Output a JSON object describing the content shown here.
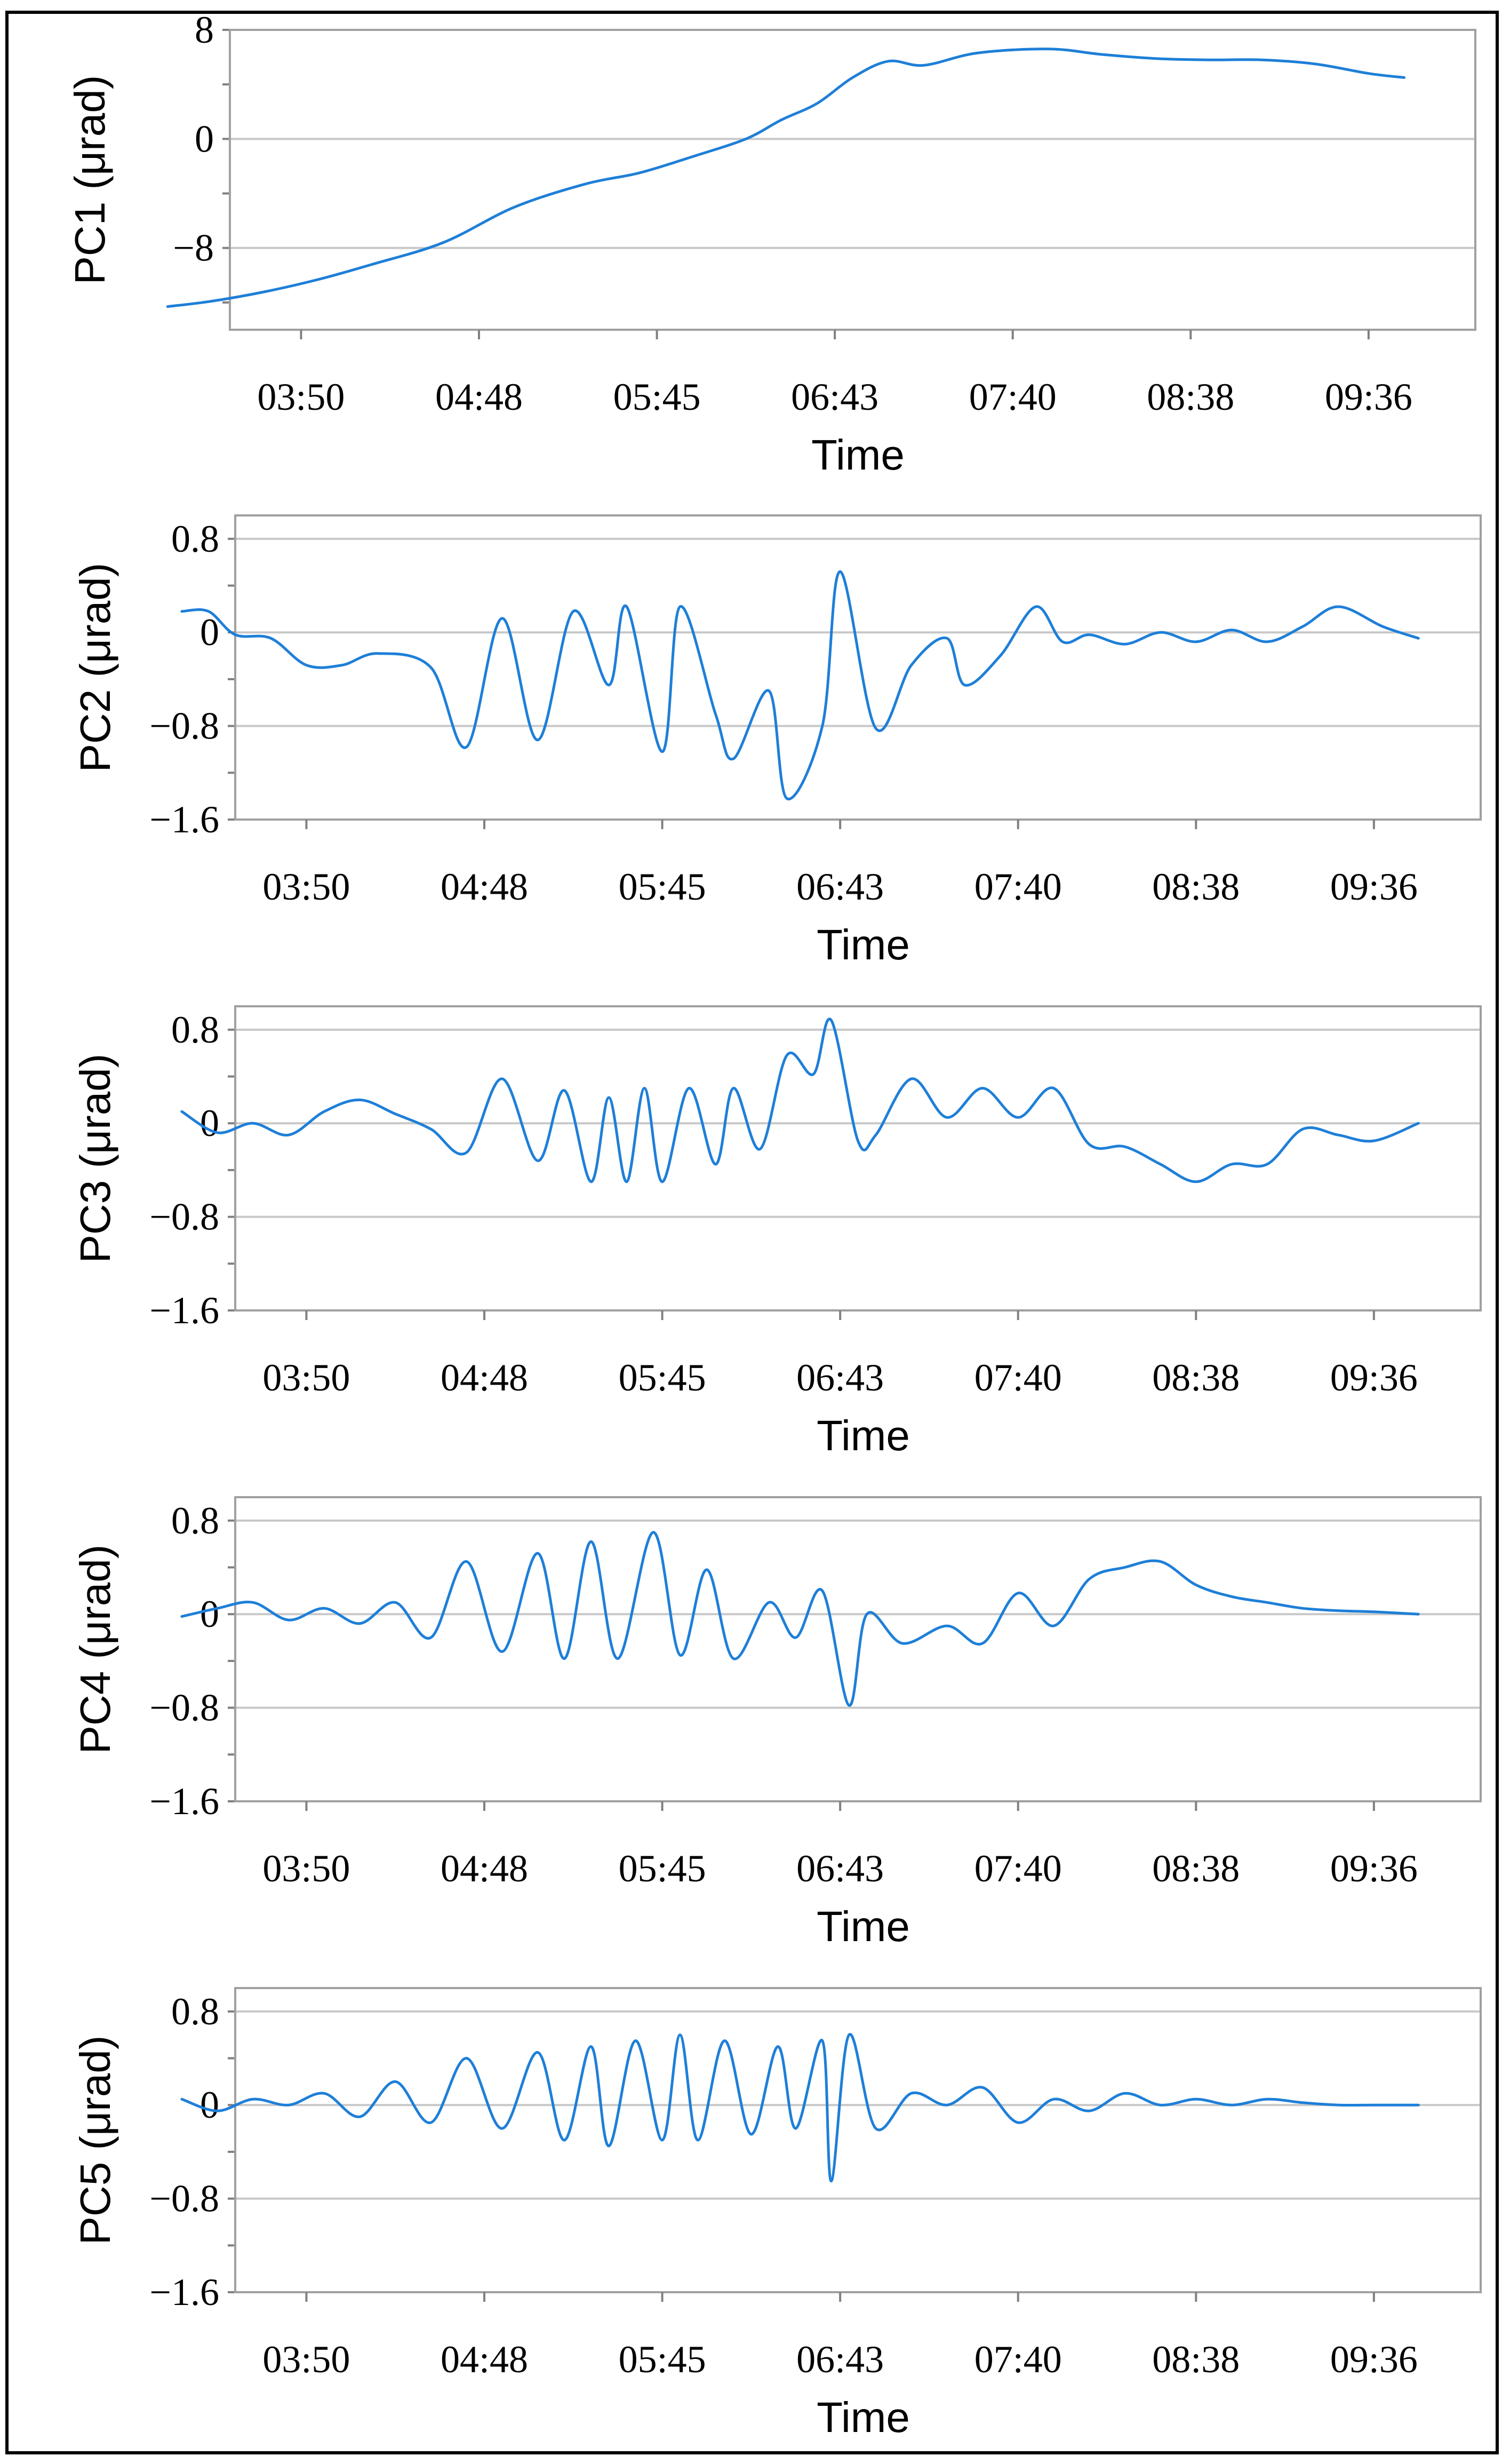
{
  "figure": {
    "line_color": "#1e7fd8",
    "grid_color": "#c8c8c8"
  },
  "chart_data": [
    {
      "type": "line",
      "ylabel": "PC1 (μrad)",
      "xlabel": "Time",
      "ylim": [
        -14,
        8
      ],
      "yticks": [
        8,
        0,
        -8
      ],
      "ytick_labels": [
        "8",
        "0",
        "−8"
      ],
      "minor_yticks": [
        4,
        -4,
        -12
      ],
      "categories": [
        "03:50",
        "04:48",
        "05:45",
        "06:43",
        "07:40",
        "08:38",
        "09:36"
      ],
      "xlim": [
        3.0,
        10.0
      ],
      "xtick_values": [
        3.4,
        4.4,
        5.4,
        6.4,
        7.4,
        8.4,
        9.4
      ],
      "series": [
        {
          "name": "PC1",
          "x": [
            2.65,
            2.9,
            3.2,
            3.5,
            3.8,
            4.2,
            4.6,
            5.0,
            5.3,
            5.6,
            5.9,
            6.1,
            6.3,
            6.5,
            6.7,
            6.9,
            7.2,
            7.6,
            7.9,
            8.2,
            8.5,
            8.8,
            9.1,
            9.4,
            9.6
          ],
          "values": [
            -12.3,
            -11.9,
            -11.2,
            -10.3,
            -9.2,
            -7.6,
            -5.0,
            -3.3,
            -2.5,
            -1.3,
            0.0,
            1.4,
            2.6,
            4.5,
            5.7,
            5.4,
            6.3,
            6.6,
            6.2,
            5.9,
            5.8,
            5.8,
            5.5,
            4.8,
            4.5
          ]
        }
      ]
    },
    {
      "type": "line",
      "ylabel": "PC2 (μrad)",
      "xlabel": "Time",
      "ylim": [
        -1.6,
        1.0
      ],
      "yticks": [
        0.8,
        0,
        -0.8,
        -1.6
      ],
      "ytick_labels": [
        "0.8",
        "0",
        "−0.8",
        "−1.6"
      ],
      "minor_yticks": [
        0.4,
        -0.4,
        -1.2
      ],
      "categories": [
        "03:50",
        "04:48",
        "05:45",
        "06:43",
        "07:40",
        "08:38",
        "09:36"
      ],
      "xlim": [
        3.0,
        10.0
      ],
      "xtick_values": [
        3.4,
        4.4,
        5.4,
        6.4,
        7.4,
        8.4,
        9.4
      ],
      "series": [
        {
          "name": "PC2",
          "x": [
            2.7,
            2.85,
            3.0,
            3.2,
            3.4,
            3.6,
            3.8,
            4.1,
            4.3,
            4.5,
            4.7,
            4.9,
            5.1,
            5.2,
            5.4,
            5.5,
            5.7,
            5.8,
            6.0,
            6.1,
            6.3,
            6.4,
            6.6,
            6.8,
            7.0,
            7.1,
            7.3,
            7.5,
            7.65,
            7.8,
            8.0,
            8.2,
            8.4,
            8.6,
            8.8,
            9.0,
            9.2,
            9.45,
            9.65
          ],
          "values": [
            0.18,
            0.18,
            -0.02,
            -0.05,
            -0.28,
            -0.28,
            -0.18,
            -0.3,
            -0.98,
            0.12,
            -0.92,
            0.18,
            -0.45,
            0.22,
            -1.02,
            0.22,
            -0.7,
            -1.08,
            -0.5,
            -1.42,
            -0.8,
            0.52,
            -0.82,
            -0.28,
            -0.05,
            -0.45,
            -0.2,
            0.22,
            -0.08,
            -0.02,
            -0.1,
            0.0,
            -0.08,
            0.02,
            -0.08,
            0.05,
            0.22,
            0.05,
            -0.05
          ]
        }
      ]
    },
    {
      "type": "line",
      "ylabel": "PC3 (μrad)",
      "xlabel": "Time",
      "ylim": [
        -1.6,
        1.0
      ],
      "yticks": [
        0.8,
        0,
        -0.8,
        -1.6
      ],
      "ytick_labels": [
        "0.8",
        "0",
        "−0.8",
        "−1.6"
      ],
      "minor_yticks": [
        0.4,
        -0.4,
        -1.2
      ],
      "categories": [
        "03:50",
        "04:48",
        "05:45",
        "06:43",
        "07:40",
        "08:38",
        "09:36"
      ],
      "xlim": [
        3.0,
        10.0
      ],
      "xtick_values": [
        3.4,
        4.4,
        5.4,
        6.4,
        7.4,
        8.4,
        9.4
      ],
      "series": [
        {
          "name": "PC3",
          "x": [
            2.7,
            2.9,
            3.1,
            3.3,
            3.5,
            3.7,
            3.9,
            4.1,
            4.3,
            4.5,
            4.7,
            4.85,
            5.0,
            5.1,
            5.2,
            5.3,
            5.4,
            5.55,
            5.7,
            5.8,
            5.95,
            6.1,
            6.25,
            6.35,
            6.5,
            6.6,
            6.8,
            7.0,
            7.2,
            7.4,
            7.6,
            7.8,
            8.0,
            8.2,
            8.4,
            8.6,
            8.8,
            9.0,
            9.2,
            9.4,
            9.65
          ],
          "values": [
            0.1,
            -0.08,
            0.0,
            -0.1,
            0.1,
            0.2,
            0.08,
            -0.05,
            -0.25,
            0.38,
            -0.32,
            0.28,
            -0.5,
            0.22,
            -0.5,
            0.3,
            -0.5,
            0.3,
            -0.35,
            0.3,
            -0.22,
            0.58,
            0.42,
            0.88,
            -0.15,
            -0.1,
            0.38,
            0.05,
            0.3,
            0.05,
            0.3,
            -0.18,
            -0.2,
            -0.35,
            -0.5,
            -0.35,
            -0.35,
            -0.05,
            -0.1,
            -0.15,
            0.0
          ]
        }
      ]
    },
    {
      "type": "line",
      "ylabel": "PC4 (μrad)",
      "xlabel": "Time",
      "ylim": [
        -1.6,
        1.0
      ],
      "yticks": [
        0.8,
        0,
        -0.8,
        -1.6
      ],
      "ytick_labels": [
        "0.8",
        "0",
        "−0.8",
        "−1.6"
      ],
      "minor_yticks": [
        0.4,
        -0.4,
        -1.2
      ],
      "categories": [
        "03:50",
        "04:48",
        "05:45",
        "06:43",
        "07:40",
        "08:38",
        "09:36"
      ],
      "xlim": [
        3.0,
        10.0
      ],
      "xtick_values": [
        3.4,
        4.4,
        5.4,
        6.4,
        7.4,
        8.4,
        9.4
      ],
      "series": [
        {
          "name": "PC4",
          "x": [
            2.7,
            2.9,
            3.1,
            3.3,
            3.5,
            3.7,
            3.9,
            4.1,
            4.3,
            4.5,
            4.7,
            4.85,
            5.0,
            5.15,
            5.35,
            5.5,
            5.65,
            5.8,
            6.0,
            6.15,
            6.3,
            6.45,
            6.55,
            6.75,
            7.0,
            7.2,
            7.4,
            7.6,
            7.8,
            8.0,
            8.2,
            8.4,
            8.6,
            8.8,
            9.0,
            9.2,
            9.4,
            9.65
          ],
          "values": [
            -0.02,
            0.05,
            0.1,
            -0.05,
            0.05,
            -0.08,
            0.1,
            -0.2,
            0.45,
            -0.32,
            0.52,
            -0.38,
            0.62,
            -0.38,
            0.7,
            -0.35,
            0.38,
            -0.38,
            0.1,
            -0.2,
            0.2,
            -0.78,
            0.0,
            -0.25,
            -0.1,
            -0.25,
            0.18,
            -0.1,
            0.3,
            0.4,
            0.45,
            0.25,
            0.15,
            0.1,
            0.05,
            0.03,
            0.02,
            0.0
          ]
        }
      ]
    },
    {
      "type": "line",
      "ylabel": "PC5 (μrad)",
      "xlabel": "Time",
      "ylim": [
        -1.6,
        1.0
      ],
      "yticks": [
        0.8,
        0,
        -0.8,
        -1.6
      ],
      "ytick_labels": [
        "0.8",
        "0",
        "−0.8",
        "−1.6"
      ],
      "minor_yticks": [
        0.4,
        -0.4,
        -1.2
      ],
      "categories": [
        "03:50",
        "04:48",
        "05:45",
        "06:43",
        "07:40",
        "08:38",
        "09:36"
      ],
      "xlim": [
        3.0,
        10.0
      ],
      "xtick_values": [
        3.4,
        4.4,
        5.4,
        6.4,
        7.4,
        8.4,
        9.4
      ],
      "series": [
        {
          "name": "PC5",
          "x": [
            2.7,
            2.9,
            3.1,
            3.3,
            3.5,
            3.7,
            3.9,
            4.1,
            4.3,
            4.5,
            4.7,
            4.85,
            5.0,
            5.1,
            5.25,
            5.4,
            5.5,
            5.6,
            5.75,
            5.9,
            6.05,
            6.15,
            6.3,
            6.35,
            6.45,
            6.6,
            6.8,
            7.0,
            7.2,
            7.4,
            7.6,
            7.8,
            8.0,
            8.2,
            8.4,
            8.6,
            8.8,
            9.0,
            9.2,
            9.4,
            9.65
          ],
          "values": [
            0.05,
            -0.05,
            0.05,
            0.0,
            0.1,
            -0.1,
            0.2,
            -0.15,
            0.4,
            -0.2,
            0.45,
            -0.3,
            0.5,
            -0.35,
            0.55,
            -0.3,
            0.6,
            -0.3,
            0.55,
            -0.25,
            0.5,
            -0.2,
            0.55,
            -0.65,
            0.6,
            -0.2,
            0.1,
            0.0,
            0.15,
            -0.15,
            0.05,
            -0.05,
            0.1,
            0.0,
            0.05,
            0.0,
            0.05,
            0.02,
            0.0,
            0.0,
            0.0
          ]
        }
      ]
    }
  ]
}
